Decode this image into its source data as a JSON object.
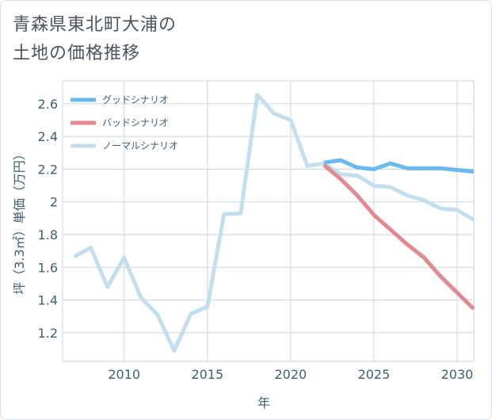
{
  "title_line1": "青森県東北町大浦の",
  "title_line2": "土地の価格推移",
  "chart_data": {
    "type": "line",
    "xlabel": "年",
    "ylabel": "坪（3.3㎡）単価（万円）",
    "xlim": [
      2006.3,
      2031
    ],
    "ylim": [
      1.025,
      2.74
    ],
    "xticks": [
      2010,
      2015,
      2020,
      2025,
      2030
    ],
    "yticks": [
      1.2,
      1.4,
      1.6,
      1.8,
      2,
      2.2,
      2.4,
      2.6
    ],
    "grid": true,
    "legend_position": "top-left",
    "series": [
      {
        "name": "ノーマルシナリオ",
        "color": "#c3dfee",
        "x": [
          2007,
          2008,
          2009,
          2010,
          2011,
          2012,
          2013,
          2014,
          2015,
          2016,
          2017,
          2018,
          2019,
          2020,
          2021,
          2022,
          2023,
          2024,
          2025,
          2026,
          2027,
          2028,
          2029,
          2030,
          2031
        ],
        "values": [
          1.665,
          1.72,
          1.48,
          1.66,
          1.415,
          1.31,
          1.09,
          1.315,
          1.36,
          1.925,
          1.93,
          2.655,
          2.54,
          2.5,
          2.22,
          2.235,
          2.17,
          2.16,
          2.1,
          2.09,
          2.04,
          2.01,
          1.96,
          1.95,
          1.89
        ]
      },
      {
        "name": "バッドシナリオ",
        "color": "#e08a91",
        "x": [
          2022,
          2023,
          2024,
          2025,
          2026,
          2027,
          2028,
          2029,
          2030,
          2031
        ],
        "values": [
          2.225,
          2.14,
          2.04,
          1.92,
          1.83,
          1.74,
          1.66,
          1.545,
          1.445,
          1.345
        ]
      },
      {
        "name": "グッドシナリオ",
        "color": "#6ab8ee",
        "x": [
          2022,
          2023,
          2024,
          2025,
          2026,
          2027,
          2028,
          2029,
          2030,
          2031
        ],
        "values": [
          2.24,
          2.255,
          2.21,
          2.2,
          2.235,
          2.205,
          2.205,
          2.205,
          2.195,
          2.185
        ]
      }
    ],
    "legend": [
      "グッドシナリオ",
      "バッドシナリオ",
      "ノーマルシナリオ"
    ]
  }
}
